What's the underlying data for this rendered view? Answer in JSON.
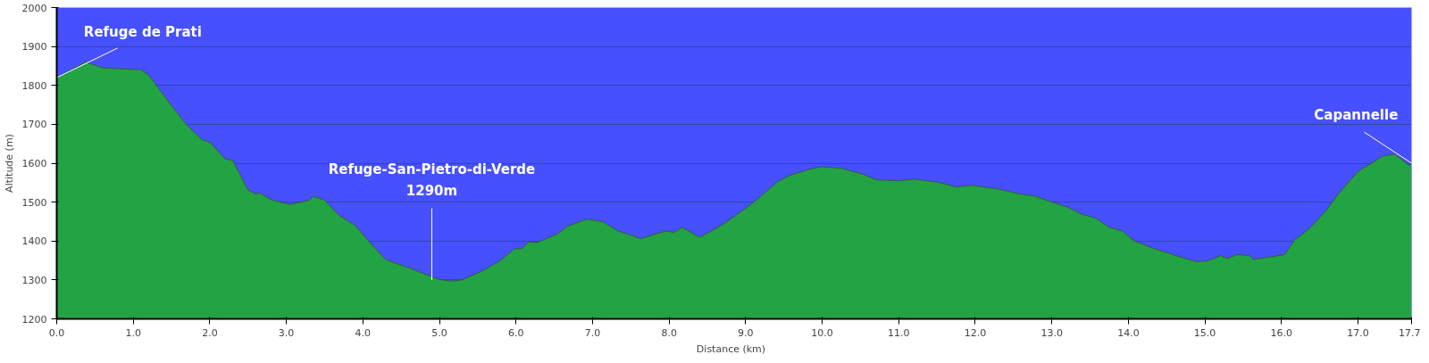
{
  "chart_data": {
    "type": "area",
    "xlabel": "Distance   (km)",
    "ylabel": "Altitude (m)",
    "xlim": [
      0,
      17.7
    ],
    "ylim": [
      1200,
      2000
    ],
    "xticks": [
      {
        "value": 0,
        "label": "0.0"
      },
      {
        "value": 1,
        "label": "1.0"
      },
      {
        "value": 2,
        "label": "2.0"
      },
      {
        "value": 3,
        "label": "3.0"
      },
      {
        "value": 4,
        "label": "4.0"
      },
      {
        "value": 5,
        "label": "5.0"
      },
      {
        "value": 6,
        "label": "6.0"
      },
      {
        "value": 7,
        "label": "7.0"
      },
      {
        "value": 8,
        "label": "8.0"
      },
      {
        "value": 9,
        "label": "9.0"
      },
      {
        "value": 10,
        "label": "10.0"
      },
      {
        "value": 11,
        "label": "11.0"
      },
      {
        "value": 12,
        "label": "12.0"
      },
      {
        "value": 13,
        "label": "13.0"
      },
      {
        "value": 14,
        "label": "14.0"
      },
      {
        "value": 15,
        "label": "15.0"
      },
      {
        "value": 16,
        "label": "16.0"
      },
      {
        "value": 17,
        "label": "17.0"
      },
      {
        "value": 17.7,
        "label": "17.7"
      }
    ],
    "yticks": [
      1200,
      1300,
      1400,
      1500,
      1600,
      1700,
      1800,
      1900,
      2000
    ],
    "grid": "y",
    "series": [
      {
        "color": "#22a444",
        "x": [
          0,
          0.38,
          0.6,
          0.8,
          1.1,
          1.2,
          1.5,
          1.7,
          1.9,
          2.0,
          2.2,
          2.3,
          2.5,
          2.6,
          2.65,
          2.8,
          3.05,
          3.3,
          3.35,
          3.5,
          3.7,
          3.9,
          4.1,
          4.3,
          4.6,
          4.8,
          5.0,
          5.15,
          5.29,
          5.54,
          5.79,
          5.98,
          6.08,
          6.17,
          6.27,
          6.54,
          6.67,
          6.92,
          7.13,
          7.33,
          7.46,
          7.63,
          7.79,
          7.96,
          8.06,
          8.17,
          8.4,
          8.63,
          8.83,
          9.04,
          9.13,
          9.42,
          9.58,
          9.88,
          10.0,
          10.25,
          10.54,
          10.71,
          11.0,
          11.21,
          11.52,
          11.75,
          11.96,
          12.29,
          12.58,
          12.79,
          13.0,
          13.21,
          13.38,
          13.58,
          13.75,
          13.92,
          14.08,
          14.33,
          14.58,
          14.88,
          15.04,
          15.21,
          15.29,
          15.42,
          15.58,
          15.63,
          15.88,
          16.04,
          16.17,
          16.38,
          16.58,
          16.75,
          17.0,
          17.17,
          17.33,
          17.48,
          17.67,
          17.7
        ],
        "values": [
          1820,
          1860,
          1845,
          1843,
          1840,
          1827,
          1748,
          1698,
          1660,
          1654,
          1611,
          1607,
          1531,
          1521,
          1524,
          1506,
          1494,
          1505,
          1515,
          1505,
          1464,
          1440,
          1394,
          1352,
          1331,
          1316,
          1301,
          1297,
          1300,
          1321,
          1349,
          1380,
          1381,
          1398,
          1396,
          1418,
          1438,
          1456,
          1450,
          1426,
          1418,
          1406,
          1416,
          1426,
          1422,
          1435,
          1410,
          1434,
          1460,
          1490,
          1504,
          1553,
          1569,
          1587,
          1591,
          1587,
          1571,
          1557,
          1555,
          1559,
          1551,
          1539,
          1543,
          1534,
          1521,
          1515,
          1500,
          1487,
          1470,
          1458,
          1435,
          1426,
          1400,
          1381,
          1365,
          1347,
          1349,
          1363,
          1355,
          1365,
          1363,
          1353,
          1360,
          1365,
          1402,
          1435,
          1478,
          1523,
          1579,
          1599,
          1619,
          1623,
          1594,
          1600
        ]
      }
    ],
    "annotations": [
      {
        "text": "Refuge de Prati",
        "x": 0,
        "y": 1820
      },
      {
        "text": "Refuge-San-Pietro-di-Verde\n1290m",
        "x": 4.9,
        "y": 1300
      },
      {
        "text": "Capannelle",
        "x": 17.7,
        "y": 1600
      }
    ]
  }
}
